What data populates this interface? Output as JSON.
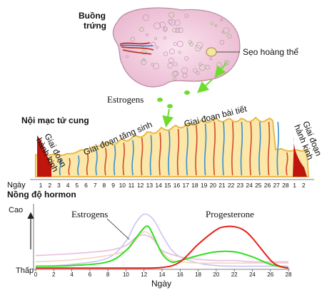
{
  "ovary": {
    "label": "Buồng trứng",
    "corpus_luteum_label": "Sẹo hoàng thể",
    "estrogens_label": "Estrogens"
  },
  "endometrium": {
    "label": "Nội mạc tử cung",
    "phases": {
      "menstrual_start": "Giai đoạn hành kinh",
      "proliferative": "Giai đoạn tăng sinh",
      "secretory": "Giai đoạn bài tiết",
      "menstrual_end": "Giai đoạn hành kinh"
    },
    "day_axis_label": "Ngày",
    "day_ticks": [
      "1",
      "2",
      "3",
      "4",
      "5",
      "6",
      "7",
      "8",
      "9",
      "10",
      "11",
      "12",
      "13",
      "14",
      "15",
      "16",
      "17",
      "18",
      "19",
      "20",
      "21",
      "22",
      "23",
      "24",
      "25",
      "26",
      "27",
      "28",
      "1",
      "2"
    ]
  },
  "chart_data": {
    "type": "line",
    "title": "Nồng độ hormon",
    "xlabel": "Ngày",
    "ylabel_high": "Cao",
    "ylabel_low": "Thấp",
    "xlim": [
      0,
      28
    ],
    "ylim": [
      0,
      1
    ],
    "x_ticks": [
      0,
      2,
      4,
      6,
      8,
      10,
      12,
      14,
      16,
      18,
      20,
      22,
      24,
      26,
      28
    ],
    "series": [
      {
        "name": "Estrogens",
        "color": "#33dd22",
        "x": [
          0,
          4,
          8,
          10,
          11,
          12,
          12.5,
          13,
          14,
          15,
          16,
          18,
          20,
          22,
          24,
          26,
          28
        ],
        "y": [
          0.05,
          0.06,
          0.12,
          0.3,
          0.48,
          0.66,
          0.68,
          0.55,
          0.25,
          0.12,
          0.14,
          0.22,
          0.28,
          0.28,
          0.2,
          0.08,
          0.02
        ]
      },
      {
        "name": "Progesterone",
        "color": "#e8201a",
        "x": [
          0,
          10,
          14,
          16,
          18,
          20,
          21,
          22,
          23,
          24,
          26,
          27,
          28
        ],
        "y": [
          0.02,
          0.02,
          0.03,
          0.12,
          0.4,
          0.63,
          0.68,
          0.68,
          0.63,
          0.5,
          0.15,
          0.05,
          0.02
        ]
      },
      {
        "name": "",
        "color": "#c9c4ee",
        "x": [
          0,
          4,
          8,
          10,
          11,
          12,
          13,
          14,
          15,
          16,
          18,
          20,
          22,
          24,
          26,
          28
        ],
        "y": [
          0.05,
          0.08,
          0.18,
          0.45,
          0.72,
          0.88,
          0.8,
          0.55,
          0.32,
          0.2,
          0.1,
          0.06,
          0.05,
          0.05,
          0.05,
          0.05
        ]
      },
      {
        "name": "",
        "color": "#f6d3bf",
        "x": [
          0,
          4,
          8,
          10,
          11,
          12,
          13,
          14,
          15,
          16,
          18,
          20,
          22,
          24,
          26,
          28
        ],
        "y": [
          0.12,
          0.15,
          0.22,
          0.3,
          0.45,
          0.6,
          0.5,
          0.28,
          0.15,
          0.12,
          0.1,
          0.1,
          0.1,
          0.1,
          0.1,
          0.1
        ]
      },
      {
        "name": "",
        "color": "#e6bde0",
        "x": [
          0,
          4,
          8,
          10,
          11,
          12,
          13,
          14,
          16,
          18,
          20,
          22,
          24,
          26,
          28
        ],
        "y": [
          0.22,
          0.25,
          0.3,
          0.38,
          0.5,
          0.55,
          0.48,
          0.3,
          0.2,
          0.16,
          0.14,
          0.14,
          0.12,
          0.12,
          0.12
        ]
      }
    ]
  }
}
